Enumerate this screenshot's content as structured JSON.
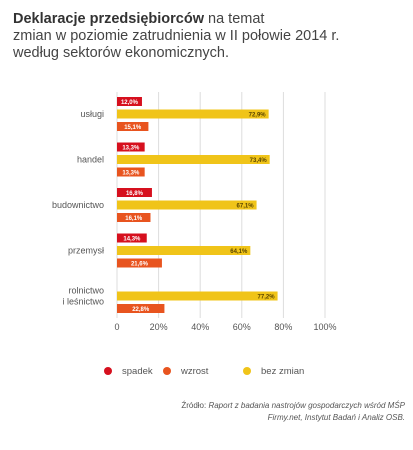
{
  "title": {
    "bold": "Deklaracje przedsiębiorców",
    "rest_line1": " na temat",
    "line2": "zmian w poziomie zatrudnienia w II połowie 2014 r.",
    "line3": "według sektorów ekonomicznych."
  },
  "source": {
    "label": "Źródło: ",
    "text_line1": "Raport z badania nastrojów gospodarczych wśród MŚP",
    "text_line2": "Firmy.net, Instytut Badań i Analiz OSB."
  },
  "colors": {
    "spadek": "#d6101e",
    "wzrost": "#e8541f",
    "bez_zmian": "#f0c419",
    "grid": "#dddddd",
    "axis_text": "#555555"
  },
  "chart_data": {
    "type": "bar",
    "orientation": "horizontal",
    "categories": [
      "usługi",
      "handel",
      "budownictwo",
      "przemysł",
      "rolnictwo\ni leśnictwo"
    ],
    "series": [
      {
        "name": "spadek",
        "values": [
          12.0,
          13.3,
          16.8,
          14.3,
          null
        ],
        "labels": [
          "12,0%",
          "13,3%",
          "16,8%",
          "14,3%",
          ""
        ]
      },
      {
        "name": "bez zmian",
        "values": [
          72.9,
          73.4,
          67.1,
          64.1,
          77.2
        ],
        "labels": [
          "72,9%",
          "73,4%",
          "67,1%",
          "64,1%",
          "77,2%"
        ]
      },
      {
        "name": "wzrost",
        "values": [
          15.1,
          13.3,
          16.1,
          21.6,
          22.8
        ],
        "labels": [
          "15,1%",
          "13,3%",
          "16,1%",
          "21,6%",
          "22,8%"
        ]
      }
    ],
    "xlim": [
      0,
      100
    ],
    "xticks": [
      "0",
      "20%",
      "40%",
      "60%",
      "80%",
      "100%"
    ],
    "grid": true,
    "legend": {
      "position": "bottom",
      "items": [
        "spadek",
        "wzrost",
        "bez zmian"
      ]
    }
  }
}
